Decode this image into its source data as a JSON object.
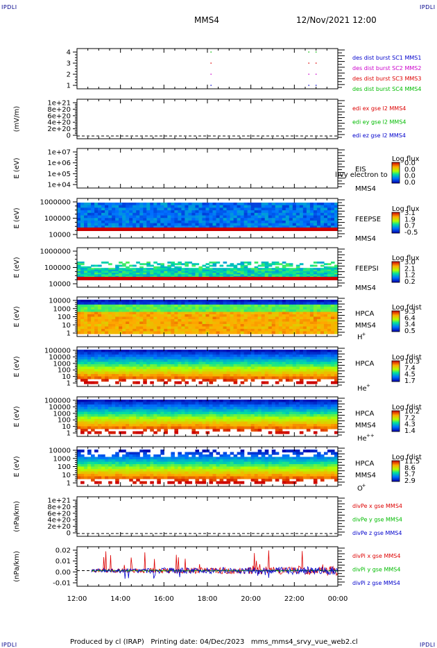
{
  "header": {
    "corner_tl": "IPDLI",
    "corner_tr": "IPDLI",
    "corner_bl": "IPDLI",
    "corner_br": "IPDLI",
    "spacecraft": "MMS4",
    "datetime": "12/Nov/2021 12:00"
  },
  "footer": {
    "produced_by": "Produced by cl (IRAP)",
    "printing_date": "Printing date: 04/Dec/2023",
    "filename": "mms_mms4_srvy_vue_web2.cl"
  },
  "time_axis": {
    "labels": [
      "12:00",
      "14:00",
      "16:00",
      "18:00",
      "20:00",
      "22:00",
      "00:00"
    ]
  },
  "colors": {
    "blue": "#0000cc",
    "magenta": "#cc00cc",
    "red": "#dd0000",
    "green": "#00bb00"
  },
  "chart_data": [
    {
      "type": "scatter",
      "panel": "burst",
      "yticks": [
        "4",
        "3",
        "2",
        "1"
      ],
      "legend": [
        {
          "label": "des dist burst SC1 MMS1",
          "color": "#0000cc"
        },
        {
          "label": "des dist burst SC2 MMS2",
          "color": "#cc00cc"
        },
        {
          "label": "des dist burst SC3 MMS3",
          "color": "#dd0000"
        },
        {
          "label": "des dist burst SC4 MMS4",
          "color": "#00bb00"
        }
      ],
      "x": [
        "18:10",
        "22:40",
        "23:00"
      ]
    },
    {
      "type": "line",
      "panel": "edi",
      "ylabel": "(mV/m)",
      "yticks": [
        "1e+21",
        "8e+20",
        "6e+20",
        "4e+20",
        "2e+20",
        "0"
      ],
      "legend": [
        {
          "label": "edi ex gse l2 MMS4",
          "color": "#dd0000"
        },
        {
          "label": "edi ey gse l2 MMS4",
          "color": "#00bb00"
        },
        {
          "label": "edi ez gse l2 MMS4",
          "color": "#0000cc"
        }
      ]
    },
    {
      "type": "heatmap",
      "panel": "eis",
      "ylabel": "E (eV)",
      "yticks": [
        "1e+07",
        "1e+06",
        "1e+05",
        "1e+04"
      ],
      "instrument": "EIS",
      "spacecraft": "MMS4",
      "overlay": "l)vy electron to",
      "colorbar": {
        "title": "Log flux",
        "ticks": [
          "0.0",
          "0.0",
          "0.0",
          "0.0"
        ]
      }
    },
    {
      "type": "heatmap",
      "panel": "feepse",
      "ylabel": "E (eV)",
      "yticks": [
        "1000000",
        "100000",
        "10000"
      ],
      "instrument": "FEEPSE",
      "spacecraft": "MMS4",
      "colorbar": {
        "title": "Log flux",
        "ticks": [
          "3.1",
          "1.9",
          "0.7",
          "-0.5"
        ]
      }
    },
    {
      "type": "heatmap",
      "panel": "feepsi",
      "ylabel": "E (eV)",
      "yticks": [
        "1000000",
        "100000",
        "10000"
      ],
      "instrument": "FEEPSI",
      "spacecraft": "MMS4",
      "colorbar": {
        "title": "Log flux",
        "ticks": [
          "3.0",
          "2.1",
          "1.2",
          "0.2"
        ]
      }
    },
    {
      "type": "heatmap",
      "panel": "hpca_h",
      "ylabel": "E (eV)",
      "yticks": [
        "10000",
        "1000",
        "100",
        "10",
        "1"
      ],
      "instrument": "HPCA",
      "spacecraft": "MMS4",
      "species": "H",
      "species_sup": "+",
      "colorbar": {
        "title": "Log fdist",
        "ticks": [
          "9.3",
          "6.4",
          "3.4",
          "0.5"
        ]
      }
    },
    {
      "type": "heatmap",
      "panel": "hpca_he",
      "ylabel": "E (eV)",
      "yticks": [
        "100000",
        "10000",
        "1000",
        "100",
        "10",
        "1"
      ],
      "instrument": "HPCA",
      "spacecraft": "",
      "species": "He",
      "species_sup": "+",
      "colorbar": {
        "title": "Log fdist",
        "ticks": [
          "10.3",
          "7.4",
          "4.5",
          "1.7"
        ]
      }
    },
    {
      "type": "heatmap",
      "panel": "hpca_hepp",
      "ylabel": "E (eV)",
      "yticks": [
        "100000",
        "10000",
        "1000",
        "100",
        "10",
        "1"
      ],
      "instrument": "HPCA",
      "spacecraft": "MMS4",
      "species": "He",
      "species_sup": "++",
      "colorbar": {
        "title": "Log fdist",
        "ticks": [
          "10.2",
          "7.2",
          "4.3",
          "1.4"
        ]
      }
    },
    {
      "type": "heatmap",
      "panel": "hpca_o",
      "ylabel": "E (eV)",
      "yticks": [
        "10000",
        "1000",
        "100",
        "10",
        "1"
      ],
      "instrument": "HPCA",
      "spacecraft": "MMS4",
      "species": "O",
      "species_sup": "+",
      "colorbar": {
        "title": "Log fdist",
        "ticks": [
          "11.5",
          "8.6",
          "5.7",
          "2.9"
        ]
      }
    },
    {
      "type": "line",
      "panel": "divpe",
      "ylabel": "(nPa/km)",
      "yticks": [
        "1e+21",
        "8e+20",
        "6e+20",
        "4e+20",
        "2e+20",
        "0"
      ],
      "legend": [
        {
          "label": "divPe x gse MMS4",
          "color": "#dd0000"
        },
        {
          "label": "divPe y gse MMS4",
          "color": "#00bb00"
        },
        {
          "label": "divPe z gse MMS4",
          "color": "#0000cc"
        }
      ]
    },
    {
      "type": "line",
      "panel": "divpi",
      "ylabel": "(nPa/km)",
      "yticks": [
        "0.02",
        "0.01",
        "0.00",
        "-0.01"
      ],
      "ylim": [
        -0.015,
        0.023
      ],
      "legend": [
        {
          "label": "divPi x gse MMS4",
          "color": "#dd0000"
        },
        {
          "label": "divPi y gse MMS4",
          "color": "#00bb00"
        },
        {
          "label": "divPi z gse MMS4",
          "color": "#0000cc"
        }
      ]
    }
  ]
}
